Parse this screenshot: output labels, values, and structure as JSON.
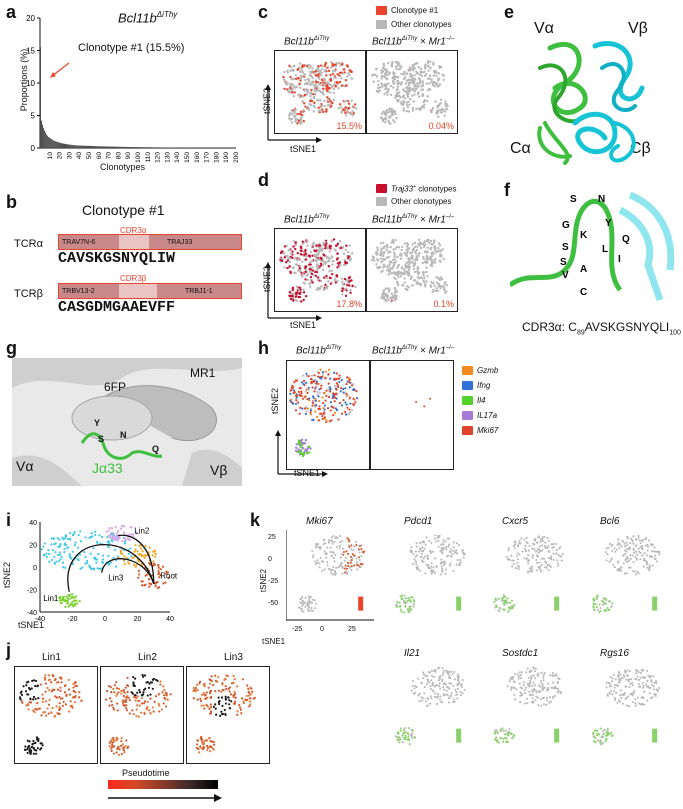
{
  "panel_labels": {
    "a": "a",
    "b": "b",
    "c": "c",
    "d": "d",
    "e": "e",
    "f": "f",
    "g": "g",
    "h": "h",
    "i": "i",
    "j": "j",
    "k": "k"
  },
  "a": {
    "title_main": "Bcl11b",
    "title_sup": "ΔiThy",
    "annotation": "Clonotype #1",
    "annotation_pct": "(15.5%)",
    "ylabel": "Proportions (%)",
    "xlabel": "Clonotypes",
    "yticks": [
      "0",
      "5",
      "10",
      "15",
      "20"
    ],
    "xticks": [
      "10",
      "20",
      "30",
      "40",
      "50",
      "60",
      "70",
      "80",
      "90",
      "100",
      "110",
      "120",
      "130",
      "140",
      "150",
      "160",
      "170",
      "180",
      "190",
      "200"
    ]
  },
  "chart_data": [
    {
      "type": "bar",
      "title": "Bcl11bΔiThy",
      "xlabel": "Clonotypes",
      "ylabel": "Proportions (%)",
      "ylim": [
        0,
        20
      ],
      "xlim": [
        0,
        200
      ],
      "values": [
        15.5,
        4.2,
        3.6,
        3.1,
        2.7,
        2.4,
        2.1,
        1.9,
        1.7,
        1.6,
        1.5,
        1.4,
        1.3,
        1.2,
        1.1,
        1.05,
        1.0,
        0.95,
        0.9,
        0.85,
        0.8,
        0.76,
        0.72,
        0.69,
        0.66,
        0.63,
        0.6,
        0.58,
        0.56,
        0.54,
        0.52,
        0.5,
        0.48,
        0.46,
        0.45,
        0.43,
        0.42,
        0.41,
        0.4,
        0.39
      ]
    }
  ],
  "b": {
    "title": "Clonotype #1",
    "cdr3a": "CDR3α",
    "cdr3b": "CDR3β",
    "tcra": "TCRα",
    "tcrb": "TCRβ",
    "trav": "TRAV7N-6",
    "traj": "TRAJ33",
    "trbv": "TRBV13-2",
    "trbj": "TRBJ1-1",
    "seq_a": "CAVSKGSNYQLIW",
    "seq_b": "CASGDMGAAEVFF"
  },
  "c": {
    "left_title_main": "Bcl11b",
    "left_title_sup": "ΔiThy",
    "right_title_main": "Bcl11b",
    "right_title_sup": "ΔiThy",
    "right_title_x": "× ",
    "right_title_mr": "Mr1",
    "right_title_ko": "–/–",
    "legend": [
      "Clonotype #1",
      "Other clonotypes"
    ],
    "pct_left": "15.5%",
    "pct_right": "0.04%",
    "axis_y": "tSNE2",
    "axis_x": "tSNE1",
    "colors": {
      "highlight": "#e8452c",
      "other": "#b8b8b8"
    }
  },
  "d": {
    "left_title_main": "Bcl11b",
    "left_title_sup": "ΔiThy",
    "right_title_main": "Bcl11b",
    "right_title_sup": "ΔiThy",
    "right_title_x": "× ",
    "right_title_mr": "Mr1",
    "right_title_ko": "–/–",
    "legend_traj": "Traj33",
    "legend_traj_sup": "+",
    "legend_traj_rest": " clonotypes",
    "legend_other": "Other clonotypes",
    "pct_left": "17.8%",
    "pct_right": "0.1%",
    "axis_y": "tSNE2",
    "axis_x": "tSNE1",
    "colors": {
      "highlight": "#c8102e",
      "other": "#b8b8b8"
    }
  },
  "e": {
    "va": "Vα",
    "vb": "Vβ",
    "ca": "Cα",
    "cb": "Cβ"
  },
  "f": {
    "residues": [
      "S",
      "N",
      "G",
      "Y",
      "K",
      "Q",
      "S",
      "L",
      "S",
      "I",
      "V",
      "A",
      "C"
    ],
    "caption_pre": "CDR3α: C",
    "caption_sub1": "89",
    "caption_mid": "AVSKGSNYQLI",
    "caption_sub2": "100"
  },
  "g": {
    "fp": "6FP",
    "mr1": "MR1",
    "va": "Vα",
    "vb": "Vβ",
    "ja": "Jα33",
    "res": [
      "Y",
      "N",
      "S",
      "Q"
    ]
  },
  "h": {
    "left_title_main": "Bcl11b",
    "left_title_sup": "ΔiThy",
    "right_title_main": "Bcl11b",
    "right_title_sup": "ΔiThy",
    "right_title_x": "× ",
    "right_title_mr": "Mr1",
    "right_title_ko": "–/–",
    "axis_y": "tSNE2",
    "axis_x": "tSNE1",
    "legend": [
      {
        "label": "Gzmb",
        "color": "#f28a1e"
      },
      {
        "label": "Ifng",
        "color": "#2f72d6"
      },
      {
        "label": "Il4",
        "color": "#55d12b"
      },
      {
        "label": "IL17a",
        "color": "#a77ad6"
      },
      {
        "label": "Mki67",
        "color": "#e0442a"
      }
    ]
  },
  "i": {
    "lineages": [
      "Lin1",
      "Lin2",
      "Lin3",
      "Root"
    ],
    "yticks": [
      "40",
      "20",
      "0",
      "-20",
      "-40"
    ],
    "xticks": [
      "-40",
      "-20",
      "0",
      "20",
      "40"
    ],
    "axis_y": "tSNE2",
    "axis_x": "tSNE1"
  },
  "j": {
    "titles": [
      "Lin1",
      "Lin2",
      "Lin3"
    ],
    "legend_label": "Pseudotime"
  },
  "k": {
    "genes_top": [
      "Mki67",
      "Pdcd1",
      "Cxcr5",
      "Bcl6"
    ],
    "genes_bottom": [
      "Il21",
      "Sostdc1",
      "Rgs16"
    ],
    "yticks": [
      "25",
      "0",
      "-25",
      "-50"
    ],
    "xticks": [
      "-25",
      "0",
      "25"
    ],
    "axis_y": "tSNE2",
    "axis_x": "tSNE1"
  }
}
